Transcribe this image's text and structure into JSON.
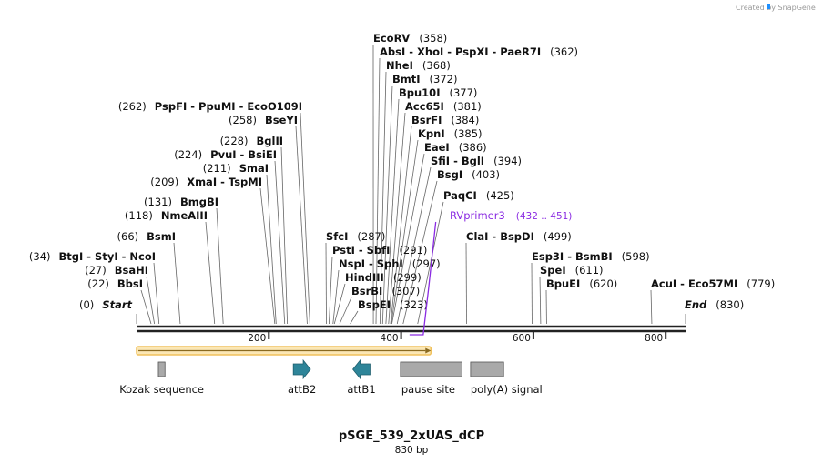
{
  "credit": "Created by SnapGene",
  "title": "pSGE_539_2xUAS_dCP",
  "length_label": "830 bp",
  "length_bp": 830,
  "axis_ticks": [
    {
      "value": 200,
      "label": "200"
    },
    {
      "value": 400,
      "label": "400"
    },
    {
      "value": 600,
      "label": "600"
    },
    {
      "value": 800,
      "label": "800"
    }
  ],
  "sites": [
    {
      "label": "EcoRV",
      "pos": 358,
      "pos_label": "(358)",
      "side": "right"
    },
    {
      "label": "AbsI  - XhoI  - PspXI  - PaeR7I",
      "pos": 362,
      "pos_label": "(362)",
      "side": "right"
    },
    {
      "label": "NheI",
      "pos": 368,
      "pos_label": "(368)",
      "side": "right"
    },
    {
      "label": "BmtI",
      "pos": 372,
      "pos_label": "(372)",
      "side": "right"
    },
    {
      "label": "Bpu10I",
      "pos": 377,
      "pos_label": "(377)",
      "side": "right"
    },
    {
      "label": "Acc65I",
      "pos": 381,
      "pos_label": "(381)",
      "side": "right"
    },
    {
      "label": "BsrFI",
      "pos": 384,
      "pos_label": "(384)",
      "side": "right"
    },
    {
      "label": "KpnI",
      "pos": 385,
      "pos_label": "(385)",
      "side": "right"
    },
    {
      "label": "EaeI",
      "pos": 386,
      "pos_label": "(386)",
      "side": "right"
    },
    {
      "label": "SfiI  - BglI",
      "pos": 394,
      "pos_label": "(394)",
      "side": "right"
    },
    {
      "label": "BsgI",
      "pos": 403,
      "pos_label": "(403)",
      "side": "right"
    },
    {
      "label": "PaqCI",
      "pos": 425,
      "pos_label": "(425)",
      "side": "right"
    },
    {
      "label": "ClaI  - BspDI",
      "pos": 499,
      "pos_label": "(499)",
      "side": "right"
    },
    {
      "label": "Esp3I  - BsmBI",
      "pos": 598,
      "pos_label": "(598)",
      "side": "right"
    },
    {
      "label": "SpeI",
      "pos": 611,
      "pos_label": "(611)",
      "side": "right"
    },
    {
      "label": "BpuEI",
      "pos": 620,
      "pos_label": "(620)",
      "side": "right"
    },
    {
      "label": "AcuI  - Eco57MI",
      "pos": 779,
      "pos_label": "(779)",
      "side": "right"
    },
    {
      "label": "SfcI",
      "pos": 287,
      "pos_label": "(287)",
      "side": "right"
    },
    {
      "label": "PstI  - SbfI",
      "pos": 291,
      "pos_label": "(291)",
      "side": "right"
    },
    {
      "label": "NspI  - SphI",
      "pos": 297,
      "pos_label": "(297)",
      "side": "right"
    },
    {
      "label": "HindIII",
      "pos": 299,
      "pos_label": "(299)",
      "side": "right"
    },
    {
      "label": "BsrBI",
      "pos": 307,
      "pos_label": "(307)",
      "side": "right"
    },
    {
      "label": "BspEI",
      "pos": 323,
      "pos_label": "(323)",
      "side": "right"
    },
    {
      "label": "PspFI  - PpuMI  - EcoO109I",
      "pos": 262,
      "pos_label": "(262)",
      "side": "left"
    },
    {
      "label": "BseYI",
      "pos": 258,
      "pos_label": "(258)",
      "side": "left"
    },
    {
      "label": "BglII",
      "pos": 228,
      "pos_label": "(228)",
      "side": "left"
    },
    {
      "label": "PvuI  - BsiEI",
      "pos": 224,
      "pos_label": "(224)",
      "side": "left"
    },
    {
      "label": "SmaI",
      "pos": 211,
      "pos_label": "(211)",
      "side": "left"
    },
    {
      "label": "XmaI  - TspMI",
      "pos": 209,
      "pos_label": "(209)",
      "side": "left"
    },
    {
      "label": "BmgBI",
      "pos": 131,
      "pos_label": "(131)",
      "side": "left"
    },
    {
      "label": "NmeAIII",
      "pos": 118,
      "pos_label": "(118)",
      "side": "left"
    },
    {
      "label": "BsmI",
      "pos": 66,
      "pos_label": "(66)",
      "side": "left"
    },
    {
      "label": "BtgI  - StyI  - NcoI",
      "pos": 34,
      "pos_label": "(34)",
      "side": "left"
    },
    {
      "label": "BsaHI",
      "pos": 27,
      "pos_label": "(27)",
      "side": "left"
    },
    {
      "label": "BbsI",
      "pos": 22,
      "pos_label": "(22)",
      "side": "left"
    },
    {
      "label": "Start",
      "pos": 0,
      "pos_label": "(0)",
      "side": "left",
      "italic": true
    },
    {
      "label": "End",
      "pos": 830,
      "pos_label": "(830)",
      "side": "right",
      "italic": true
    }
  ],
  "primer": {
    "name": "RVprimer3",
    "range": "(432 .. 451)",
    "start": 432,
    "end": 451,
    "color": "#8a2be2"
  },
  "selection": {
    "start": 0,
    "end": 445
  },
  "features": [
    {
      "name": "Kozak sequence",
      "type": "box",
      "start": 33,
      "end": 43,
      "color": "#a9a9a9"
    },
    {
      "name": "attB2",
      "type": "arrow-right",
      "start": 237,
      "end": 263,
      "color": "#2e8599"
    },
    {
      "name": "attB1",
      "type": "arrow-left",
      "start": 327,
      "end": 353,
      "color": "#2e8599"
    },
    {
      "name": "pause site",
      "type": "box",
      "start": 399,
      "end": 492,
      "color": "#a9a9a9"
    },
    {
      "name": "poly(A) signal",
      "type": "box",
      "start": 505,
      "end": 555,
      "color": "#a9a9a9"
    }
  ],
  "colors": {
    "accent": "#f0c15c",
    "primer": "#8a2be2",
    "feature_teal": "#2e8599",
    "feature_grey": "#a9a9a9",
    "credit_blue": "#1e90ff"
  }
}
